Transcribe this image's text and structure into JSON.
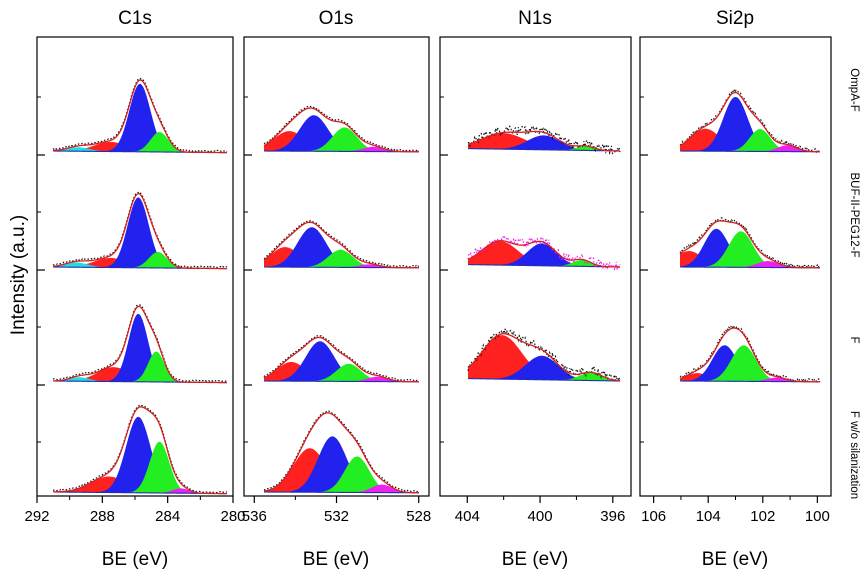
{
  "figure": {
    "ylabel": "Intensity (a.u.)",
    "row_labels": [
      "OmpA-F",
      "BUF-II-PEG12-F",
      "F",
      "F w/o silanization"
    ],
    "colors": {
      "envelope": "#d62020",
      "raw": "#111111",
      "background": "#1f2fb0",
      "red": "#ff2020",
      "blue": "#2222ee",
      "green": "#22ee22",
      "magenta": "#ee22ee",
      "cyan": "#22dddd"
    }
  },
  "chart_data": [
    {
      "type": "line",
      "title": "C1s",
      "xlabel": "BE (eV)",
      "ylabel": "Intensity (a.u.)",
      "xlim": [
        292,
        280
      ],
      "xticks": [
        "292",
        "288",
        "284",
        "280"
      ],
      "rows": [
        {
          "sample": "OmpA-F",
          "background": [
            0.05,
            0.03
          ],
          "peaks": [
            {
              "color": "red",
              "center": 287.5,
              "height": 0.12,
              "width": 1.0
            },
            {
              "color": "blue",
              "center": 285.7,
              "height": 0.85,
              "width": 0.65
            },
            {
              "color": "green",
              "center": 284.5,
              "height": 0.25,
              "width": 0.55
            },
            {
              "color": "cyan",
              "center": 289.5,
              "height": 0.05,
              "width": 0.7
            }
          ]
        },
        {
          "sample": "BUF-II-PEG12-F",
          "background": [
            0.05,
            0.03
          ],
          "peaks": [
            {
              "color": "red",
              "center": 287.5,
              "height": 0.12,
              "width": 1.0
            },
            {
              "color": "blue",
              "center": 285.8,
              "height": 0.88,
              "width": 0.65
            },
            {
              "color": "green",
              "center": 284.6,
              "height": 0.2,
              "width": 0.55
            },
            {
              "color": "cyan",
              "center": 289.6,
              "height": 0.06,
              "width": 0.7
            }
          ]
        },
        {
          "sample": "F",
          "background": [
            0.05,
            0.03
          ],
          "peaks": [
            {
              "color": "red",
              "center": 287.3,
              "height": 0.18,
              "width": 1.0
            },
            {
              "color": "blue",
              "center": 285.8,
              "height": 0.85,
              "width": 0.6
            },
            {
              "color": "green",
              "center": 284.7,
              "height": 0.38,
              "width": 0.5
            },
            {
              "color": "cyan",
              "center": 289.4,
              "height": 0.05,
              "width": 0.6
            }
          ]
        },
        {
          "sample": "F w/o silanization",
          "background": [
            0.05,
            0.03
          ],
          "peaks": [
            {
              "color": "red",
              "center": 287.6,
              "height": 0.2,
              "width": 1.1
            },
            {
              "color": "blue",
              "center": 285.8,
              "height": 0.95,
              "width": 0.75
            },
            {
              "color": "green",
              "center": 284.5,
              "height": 0.64,
              "width": 0.6
            },
            {
              "color": "magenta",
              "center": 283.2,
              "height": 0.06,
              "width": 0.5
            }
          ]
        }
      ]
    },
    {
      "type": "line",
      "title": "O1s",
      "xlabel": "BE (eV)",
      "xlim": [
        536.5,
        527.5
      ],
      "xticks": [
        "536",
        "532",
        "528"
      ],
      "rows": [
        {
          "sample": "OmpA-F",
          "background": [
            0.05,
            0.04
          ],
          "peaks": [
            {
              "color": "red",
              "center": 534.3,
              "height": 0.25,
              "width": 0.75
            },
            {
              "color": "blue",
              "center": 533.1,
              "height": 0.45,
              "width": 0.7
            },
            {
              "color": "green",
              "center": 531.6,
              "height": 0.3,
              "width": 0.6
            },
            {
              "color": "magenta",
              "center": 530.2,
              "height": 0.06,
              "width": 0.5
            }
          ]
        },
        {
          "sample": "BUF-II-PEG12-F",
          "background": [
            0.05,
            0.04
          ],
          "peaks": [
            {
              "color": "red",
              "center": 534.5,
              "height": 0.25,
              "width": 0.7
            },
            {
              "color": "blue",
              "center": 533.2,
              "height": 0.5,
              "width": 0.7
            },
            {
              "color": "green",
              "center": 531.8,
              "height": 0.22,
              "width": 0.6
            },
            {
              "color": "magenta",
              "center": 530.4,
              "height": 0.04,
              "width": 0.5
            }
          ]
        },
        {
          "sample": "F",
          "background": [
            0.05,
            0.04
          ],
          "peaks": [
            {
              "color": "red",
              "center": 534.2,
              "height": 0.24,
              "width": 0.7
            },
            {
              "color": "blue",
              "center": 532.8,
              "height": 0.5,
              "width": 0.7
            },
            {
              "color": "green",
              "center": 531.4,
              "height": 0.22,
              "width": 0.6
            },
            {
              "color": "magenta",
              "center": 530.0,
              "height": 0.06,
              "width": 0.5
            }
          ]
        },
        {
          "sample": "F w/o silanization",
          "background": [
            0.05,
            0.04
          ],
          "peaks": [
            {
              "color": "red",
              "center": 533.3,
              "height": 0.55,
              "width": 0.8
            },
            {
              "color": "blue",
              "center": 532.2,
              "height": 0.7,
              "width": 0.7
            },
            {
              "color": "green",
              "center": 531.0,
              "height": 0.45,
              "width": 0.6
            },
            {
              "color": "magenta",
              "center": 529.8,
              "height": 0.1,
              "width": 0.5
            }
          ]
        }
      ]
    },
    {
      "type": "line",
      "title": "N1s",
      "xlabel": "BE (eV)",
      "xlim": [
        405.5,
        395
      ],
      "xticks": [
        "404",
        "400",
        "396"
      ],
      "rows": [
        {
          "sample": "OmpA-F",
          "background": [
            0.08,
            0.05
          ],
          "peaks": [
            {
              "color": "red",
              "center": 402.0,
              "height": 0.2,
              "width": 1.2
            },
            {
              "color": "blue",
              "center": 399.8,
              "height": 0.18,
              "width": 0.9
            },
            {
              "color": "green",
              "center": 397.5,
              "height": 0.05,
              "width": 0.5
            }
          ]
        },
        {
          "sample": "BUF-II-PEG12-F",
          "background": [
            0.08,
            0.05
          ],
          "peaks": [
            {
              "color": "red",
              "center": 402.2,
              "height": 0.3,
              "width": 1.0
            },
            {
              "color": "blue",
              "center": 399.9,
              "height": 0.28,
              "width": 0.8
            },
            {
              "color": "green",
              "center": 397.7,
              "height": 0.08,
              "width": 0.5
            }
          ]
        },
        {
          "sample": "F",
          "background": [
            0.08,
            0.05
          ],
          "peaks": [
            {
              "color": "red",
              "center": 402.1,
              "height": 0.55,
              "width": 1.1
            },
            {
              "color": "blue",
              "center": 399.9,
              "height": 0.3,
              "width": 0.9
            },
            {
              "color": "green",
              "center": 397.2,
              "height": 0.1,
              "width": 0.6
            }
          ]
        }
      ]
    },
    {
      "type": "line",
      "title": "Si2p",
      "xlabel": "BE (eV)",
      "xlim": [
        106.5,
        99.5
      ],
      "xticks": [
        "106",
        "104",
        "102",
        "100"
      ],
      "rows": [
        {
          "sample": "OmpA-F",
          "background": [
            0.05,
            0.04
          ],
          "peaks": [
            {
              "color": "red",
              "center": 104.1,
              "height": 0.28,
              "width": 0.55
            },
            {
              "color": "blue",
              "center": 103.0,
              "height": 0.68,
              "width": 0.45
            },
            {
              "color": "green",
              "center": 102.1,
              "height": 0.28,
              "width": 0.38
            },
            {
              "color": "magenta",
              "center": 101.1,
              "height": 0.08,
              "width": 0.35
            }
          ]
        },
        {
          "sample": "BUF-II-PEG12-F",
          "background": [
            0.05,
            0.04
          ],
          "peaks": [
            {
              "color": "red",
              "center": 104.7,
              "height": 0.2,
              "width": 0.5
            },
            {
              "color": "blue",
              "center": 103.7,
              "height": 0.48,
              "width": 0.45
            },
            {
              "color": "green",
              "center": 102.8,
              "height": 0.45,
              "width": 0.45
            },
            {
              "color": "magenta",
              "center": 101.8,
              "height": 0.08,
              "width": 0.4
            }
          ]
        },
        {
          "sample": "F",
          "background": [
            0.05,
            0.04
          ],
          "peaks": [
            {
              "color": "red",
              "center": 104.4,
              "height": 0.1,
              "width": 0.4
            },
            {
              "color": "blue",
              "center": 103.4,
              "height": 0.45,
              "width": 0.45
            },
            {
              "color": "green",
              "center": 102.7,
              "height": 0.45,
              "width": 0.45
            },
            {
              "color": "magenta",
              "center": 101.5,
              "height": 0.05,
              "width": 0.35
            }
          ]
        }
      ]
    }
  ]
}
